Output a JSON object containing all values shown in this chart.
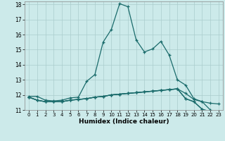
{
  "xlabel": "Humidex (Indice chaleur)",
  "xlim": [
    -0.5,
    23.5
  ],
  "ylim": [
    11,
    18.2
  ],
  "yticks": [
    11,
    12,
    13,
    14,
    15,
    16,
    17,
    18
  ],
  "xticks": [
    0,
    1,
    2,
    3,
    4,
    5,
    6,
    7,
    8,
    9,
    10,
    11,
    12,
    13,
    14,
    15,
    16,
    17,
    18,
    19,
    20,
    21,
    22,
    23
  ],
  "bg_color": "#cceaea",
  "grid_color": "#aacccc",
  "line_color": "#1a6b6b",
  "line1_x": [
    0,
    1,
    2,
    3,
    4,
    5,
    6,
    7,
    8,
    9,
    10,
    11,
    12,
    13,
    14,
    15,
    16,
    17,
    18,
    19,
    20,
    21,
    22,
    23
  ],
  "line1_y": [
    11.9,
    11.9,
    11.65,
    11.6,
    11.65,
    11.8,
    11.85,
    12.9,
    13.35,
    15.5,
    16.35,
    18.05,
    17.85,
    15.65,
    14.85,
    15.05,
    15.55,
    14.65,
    13.0,
    12.65,
    11.75,
    11.55,
    11.0,
    10.75
  ],
  "line2_x": [
    0,
    1,
    2,
    3,
    4,
    5,
    6,
    7,
    8,
    9,
    10,
    11,
    12,
    13,
    14,
    15,
    16,
    17,
    18,
    19,
    20,
    21,
    22,
    23
  ],
  "line2_y": [
    11.85,
    11.65,
    11.55,
    11.55,
    11.55,
    11.65,
    11.7,
    11.75,
    11.85,
    11.9,
    12.0,
    12.05,
    12.1,
    12.15,
    12.2,
    12.25,
    12.3,
    12.35,
    12.4,
    12.1,
    11.7,
    11.55,
    11.45,
    11.4
  ],
  "line3_x": [
    0,
    1,
    2,
    3,
    4,
    5,
    6,
    7,
    8,
    9,
    10,
    11,
    12,
    13,
    14,
    15,
    16,
    17,
    18,
    19,
    20,
    21,
    22,
    23
  ],
  "line3_y": [
    11.85,
    11.65,
    11.55,
    11.55,
    11.55,
    11.65,
    11.7,
    11.75,
    11.85,
    11.9,
    12.0,
    12.05,
    12.1,
    12.15,
    12.2,
    12.25,
    12.3,
    12.35,
    12.4,
    11.75,
    11.55,
    11.05,
    10.9,
    10.75
  ],
  "line4_x": [
    0,
    1,
    2,
    3,
    4,
    5,
    6,
    7,
    8,
    9,
    10,
    11,
    12,
    13,
    14,
    15,
    16,
    17,
    18,
    19,
    20,
    21,
    22,
    23
  ],
  "line4_y": [
    11.85,
    11.65,
    11.55,
    11.55,
    11.55,
    11.65,
    11.7,
    11.75,
    11.85,
    11.9,
    12.0,
    12.05,
    12.1,
    12.15,
    12.2,
    12.25,
    12.3,
    12.35,
    12.4,
    11.75,
    11.55,
    11.05,
    10.85,
    10.75
  ]
}
